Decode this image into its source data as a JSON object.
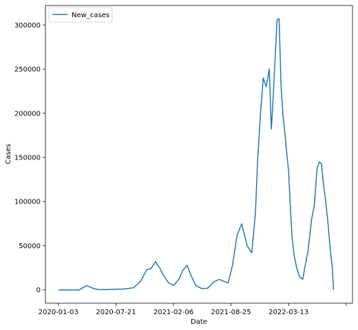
{
  "chart_data": {
    "type": "line",
    "title": "",
    "xlabel": "Date",
    "ylabel": "Cases",
    "xlim": [
      "2019-11-19",
      "2022-10-21"
    ],
    "ylim": [
      -15000,
      322000
    ],
    "grid": false,
    "legend_position": "top-left",
    "x_ticks": [
      "2020-01-03",
      "2020-07-21",
      "2021-02-06",
      "2021-08-25",
      "2022-03-13",
      ""
    ],
    "y_ticks": [
      "0",
      "50000",
      "100000",
      "150000",
      "200000",
      "250000",
      "300000"
    ],
    "series": [
      {
        "name": "New_cases",
        "color": "#1f77b4",
        "x": [
          "2020-01-03",
          "2020-03-15",
          "2020-04-10",
          "2020-05-01",
          "2020-05-20",
          "2020-06-15",
          "2020-07-15",
          "2020-08-20",
          "2020-09-20",
          "2020-10-15",
          "2020-11-05",
          "2020-11-20",
          "2020-12-05",
          "2020-12-20",
          "2021-01-05",
          "2021-01-20",
          "2021-02-06",
          "2021-02-25",
          "2021-03-10",
          "2021-03-25",
          "2021-04-10",
          "2021-04-25",
          "2021-05-15",
          "2021-06-05",
          "2021-06-25",
          "2021-07-15",
          "2021-07-30",
          "2021-08-15",
          "2021-08-30",
          "2021-09-15",
          "2021-10-01",
          "2021-10-20",
          "2021-11-05",
          "2021-11-18",
          "2021-11-25",
          "2021-12-05",
          "2021-12-15",
          "2021-12-25",
          "2022-01-05",
          "2022-01-12",
          "2022-01-18",
          "2022-01-25",
          "2022-02-01",
          "2022-02-08",
          "2022-02-15",
          "2022-02-22",
          "2022-03-01",
          "2022-03-08",
          "2022-03-13",
          "2022-03-18",
          "2022-03-25",
          "2022-04-01",
          "2022-04-10",
          "2022-04-20",
          "2022-05-01",
          "2022-05-10",
          "2022-05-20",
          "2022-06-01",
          "2022-06-10",
          "2022-06-20",
          "2022-06-28",
          "2022-07-05",
          "2022-07-12",
          "2022-07-20",
          "2022-07-28",
          "2022-08-05",
          "2022-08-12",
          "2022-08-16"
        ],
        "values": [
          0,
          0,
          5000,
          2000,
          500,
          300,
          800,
          1000,
          2500,
          10000,
          23000,
          24000,
          32000,
          25000,
          15000,
          8000,
          5000,
          12000,
          22000,
          28000,
          15000,
          5000,
          1500,
          2000,
          9000,
          12000,
          10000,
          8000,
          28000,
          62000,
          75000,
          50000,
          42000,
          88000,
          145000,
          198000,
          240000,
          230000,
          250000,
          182000,
          215000,
          262000,
          306000,
          307000,
          230000,
          195000,
          175000,
          150000,
          135000,
          100000,
          60000,
          40000,
          25000,
          15000,
          12000,
          28000,
          45000,
          80000,
          95000,
          138000,
          145000,
          143000,
          120000,
          100000,
          75000,
          45000,
          25000,
          0
        ]
      }
    ]
  }
}
